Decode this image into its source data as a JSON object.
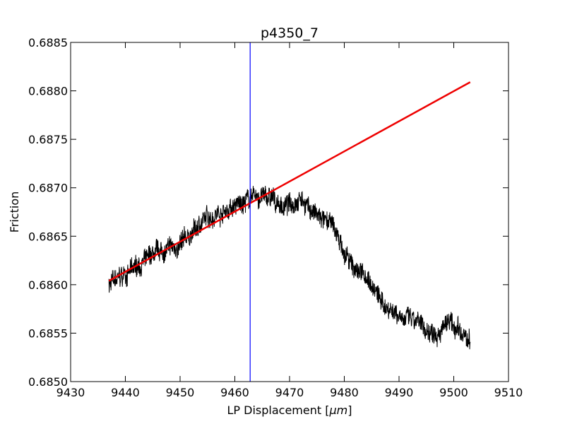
{
  "chart_data": {
    "type": "line",
    "title": "p4350_7",
    "xlabel": "LP Displacement [",
    "xlabel_unit": "μm",
    "xlabel_suffix": "]",
    "ylabel": "Friction",
    "xlim": [
      9430,
      9510
    ],
    "ylim": [
      0.685,
      0.6885
    ],
    "xticks": [
      9430,
      9440,
      9450,
      9460,
      9470,
      9480,
      9490,
      9500,
      9510
    ],
    "xtick_labels": [
      "9430",
      "9440",
      "9450",
      "9460",
      "9470",
      "9480",
      "9490",
      "9500",
      "9510"
    ],
    "yticks": [
      0.685,
      0.6855,
      0.686,
      0.6865,
      0.687,
      0.6875,
      0.688,
      0.6885
    ],
    "ytick_labels": [
      "0.6850",
      "0.6855",
      "0.6860",
      "0.6865",
      "0.6870",
      "0.6875",
      "0.6880",
      "0.6885"
    ],
    "grid": false,
    "series": [
      {
        "color": "#000000",
        "noise": 0.00012,
        "x": [
          9437,
          9440,
          9445,
          9450,
          9455,
          9460,
          9463,
          9466,
          9469,
          9472,
          9475,
          9478,
          9481,
          9484,
          9487,
          9490,
          9493,
          9496,
          9499,
          9501,
          9503
        ],
        "y": [
          0.686,
          0.6861,
          0.6863,
          0.6864,
          0.6867,
          0.6868,
          0.6869,
          0.6869,
          0.6868,
          0.6869,
          0.6867,
          0.6866,
          0.6862,
          0.6861,
          0.6858,
          0.6857,
          0.6856,
          0.6855,
          0.6856,
          0.6855,
          0.6854
        ]
      },
      {
        "color": "#ee0000",
        "x": [
          9437,
          9503
        ],
        "y": [
          0.68604,
          0.68809
        ]
      }
    ],
    "vline": {
      "x": 9462.8,
      "color": "#0000ff"
    }
  }
}
